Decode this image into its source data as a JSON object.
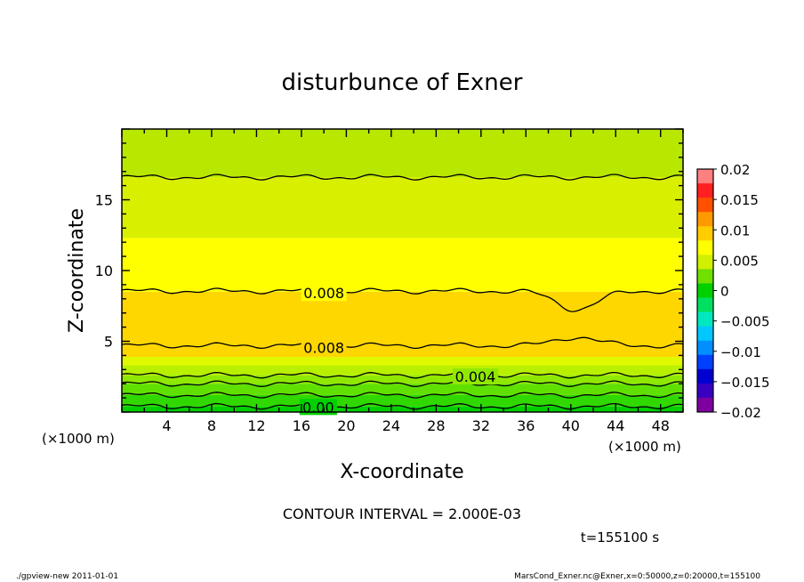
{
  "chart_data": {
    "type": "contour",
    "title": "disturbunce of Exner",
    "xlabel": "X-coordinate",
    "ylabel": "Z-coordinate",
    "x_unit_label": "(×1000 m)",
    "z_unit_label": "(×1000 m)",
    "xlim": [
      0,
      50
    ],
    "ylim": [
      0,
      20
    ],
    "x_ticks": [
      "4",
      "8",
      "12",
      "16",
      "20",
      "24",
      "28",
      "32",
      "36",
      "40",
      "44",
      "48"
    ],
    "y_ticks": [
      "5",
      "10",
      "15"
    ],
    "contour_interval_text": "CONTOUR INTERVAL = 2.000E-03",
    "time_text": "t=155100 s",
    "colorbar": {
      "tick_labels": [
        "0.02",
        "0.015",
        "0.01",
        "0.005",
        "0",
        "−0.005",
        "−0.01",
        "−0.015",
        "−0.02"
      ],
      "levels": [
        -0.02,
        -0.0175,
        -0.015,
        -0.0125,
        -0.01,
        -0.0075,
        -0.005,
        -0.0025,
        0,
        0.0025,
        0.005,
        0.0075,
        0.01,
        0.0125,
        0.015,
        0.0175,
        0.02
      ],
      "colors": [
        "#7f00a0",
        "#3800c0",
        "#0000d0",
        "#0040ff",
        "#0090ff",
        "#00c8ff",
        "#00e8c0",
        "#00e060",
        "#00d000",
        "#70e000",
        "#d0f000",
        "#ffff00",
        "#ffcc00",
        "#ff9900",
        "#ff5000",
        "#ff2020",
        "#ff8080"
      ]
    },
    "bands": [
      {
        "z_bottom": 0.0,
        "z_top": 0.4,
        "color": "#00d000"
      },
      {
        "z_bottom": 0.4,
        "z_top": 1.2,
        "color": "#30d800"
      },
      {
        "z_bottom": 1.2,
        "z_top": 2.0,
        "color": "#60e000"
      },
      {
        "z_bottom": 2.0,
        "z_top": 2.6,
        "color": "#90e800"
      },
      {
        "z_bottom": 2.6,
        "z_top": 3.3,
        "color": "#b8f000"
      },
      {
        "z_bottom": 3.3,
        "z_top": 3.9,
        "color": "#e0f800"
      },
      {
        "z_bottom": 3.9,
        "z_top": 8.5,
        "color": "#ffd700"
      },
      {
        "z_bottom": 8.5,
        "z_top": 12.3,
        "color": "#ffff00"
      },
      {
        "z_bottom": 12.3,
        "z_top": 16.6,
        "color": "#d8f000"
      },
      {
        "z_bottom": 16.6,
        "z_top": 20.0,
        "color": "#b8e800"
      }
    ],
    "contour_lines": [
      {
        "z": 0.4,
        "label": "0.00",
        "label_x": 17.5
      },
      {
        "z": 1.2
      },
      {
        "z": 2.0
      },
      {
        "z": 2.6,
        "label": "0.004",
        "label_x": 31.5
      },
      {
        "z": 4.7,
        "label": "0.008",
        "label_x": 18.0
      },
      {
        "z": 8.55,
        "label": "0.008",
        "label_x": 18.0
      },
      {
        "z": 16.6
      }
    ],
    "footer_left": "./gpview-new  2011-01-01",
    "footer_right": "MarsCond_Exner.nc@Exner,x=0:50000,z=0:20000,t=155100"
  }
}
